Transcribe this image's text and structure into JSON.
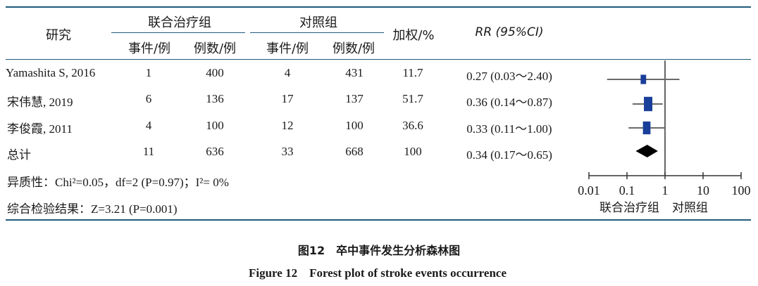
{
  "header": {
    "study": "研究",
    "treatment_group": "联合治疗组",
    "control_group": "对照组",
    "events_per_case": "事件/例",
    "cases_per_case": "例数/例",
    "weight": "加权/%",
    "rr": "RR (95%CI)"
  },
  "rows": [
    {
      "study": "Yamashita S, 2016",
      "t_events": "1",
      "t_total": "400",
      "c_events": "4",
      "c_total": "431",
      "weight": "11.7",
      "rr_ci": "0.27 (0.03～2.40)"
    },
    {
      "study": "宋伟慧, 2019",
      "t_events": "6",
      "t_total": "136",
      "c_events": "17",
      "c_total": "137",
      "weight": "51.7",
      "rr_ci": "0.36 (0.14～0.87)"
    },
    {
      "study": "李俊霞, 2011",
      "t_events": "4",
      "t_total": "100",
      "c_events": "12",
      "c_total": "100",
      "weight": "36.6",
      "rr_ci": "0.33 (0.11～1.00)"
    },
    {
      "study": "总计",
      "t_events": "11",
      "t_total": "636",
      "c_events": "33",
      "c_total": "668",
      "weight": "100",
      "rr_ci": "0.34 (0.17～0.65)"
    }
  ],
  "heterogeneity": "异质性：Chi²=0.05，df=2 (P=0.97)；I²= 0%",
  "overall_test": "综合检验结果：Z=3.21 (P=0.001)",
  "caption_zh": "图12　卒中事件发生分析森林图",
  "caption_en": "Figure 12　Forest plot of stroke events occurrence",
  "colors": {
    "rule": "#1f5a7a",
    "marker": "#1a3f9a",
    "ci": "#6a6a6a",
    "diamond": "#000000"
  },
  "chart_data": {
    "type": "forest",
    "x_scale": "log",
    "xlim": [
      0.01,
      100
    ],
    "xticks": [
      "0.01",
      "0.1",
      "1",
      "10",
      "100"
    ],
    "xtick_values": [
      0.01,
      0.1,
      1,
      10,
      100
    ],
    "reference_line": 1,
    "favours_left": "联合治疗组",
    "favours_right": "对照组",
    "studies": [
      {
        "name": "Yamashita S, 2016",
        "rr": 0.27,
        "lower": 0.03,
        "upper": 2.4,
        "weight": 11.7
      },
      {
        "name": "宋伟慧, 2019",
        "rr": 0.36,
        "lower": 0.14,
        "upper": 0.87,
        "weight": 51.7
      },
      {
        "name": "李俊霞, 2011",
        "rr": 0.33,
        "lower": 0.11,
        "upper": 1.0,
        "weight": 36.6
      }
    ],
    "pooled": {
      "name": "总计",
      "rr": 0.34,
      "lower": 0.17,
      "upper": 0.65
    }
  }
}
